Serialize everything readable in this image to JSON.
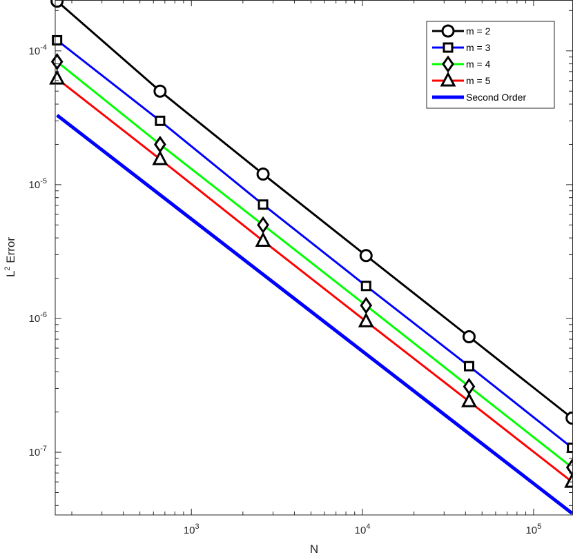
{
  "chart_data": {
    "type": "line",
    "xscale": "log",
    "yscale": "log",
    "xlim": [
      160,
      170000
    ],
    "ylim": [
      3.4e-08,
      0.00024
    ],
    "xlabel": "N",
    "ylabel": {
      "base": "L",
      "sup": "2",
      "rest": " Error"
    },
    "x_ticks": [
      {
        "base": "10",
        "exp": "3",
        "value": 1000
      },
      {
        "base": "10",
        "exp": "4",
        "value": 10000
      },
      {
        "base": "10",
        "exp": "5",
        "value": 100000
      }
    ],
    "y_ticks": [
      {
        "base": "10",
        "exp": "-4",
        "value": 0.0001
      },
      {
        "base": "10",
        "exp": "-5",
        "value": 1e-05
      },
      {
        "base": "10",
        "exp": "-6",
        "value": 1e-06
      },
      {
        "base": "10",
        "exp": "-7",
        "value": 1e-07
      }
    ],
    "legend_position": "top-right",
    "grid": false,
    "x": [
      164,
      656,
      2624,
      10496,
      41984,
      167936
    ],
    "series": [
      {
        "name": "m = 2",
        "color": "#000000",
        "marker": "circle",
        "values": [
          0.000235,
          5e-05,
          1.2e-05,
          2.95e-06,
          7.3e-07,
          1.8e-07
        ]
      },
      {
        "name": "m = 3",
        "color": "#0000ff",
        "marker": "square",
        "values": [
          0.00012,
          3e-05,
          7.1e-06,
          1.75e-06,
          4.4e-07,
          1.08e-07
        ]
      },
      {
        "name": "m = 4",
        "color": "#00ff00",
        "marker": "diamond",
        "values": [
          8.3e-05,
          2e-05,
          5e-06,
          1.25e-06,
          3.1e-07,
          7.7e-08
        ]
      },
      {
        "name": "m = 5",
        "color": "#ff0000",
        "marker": "triangle",
        "values": [
          6.2e-05,
          1.55e-05,
          3.8e-06,
          9.5e-07,
          2.4e-07,
          6e-08
        ]
      },
      {
        "name": "Second Order",
        "color": "#0000ff",
        "marker": "none",
        "line_style": "thick",
        "x": [
          164,
          167936
        ],
        "values": [
          3.3e-05,
          3.5e-08
        ]
      }
    ]
  }
}
